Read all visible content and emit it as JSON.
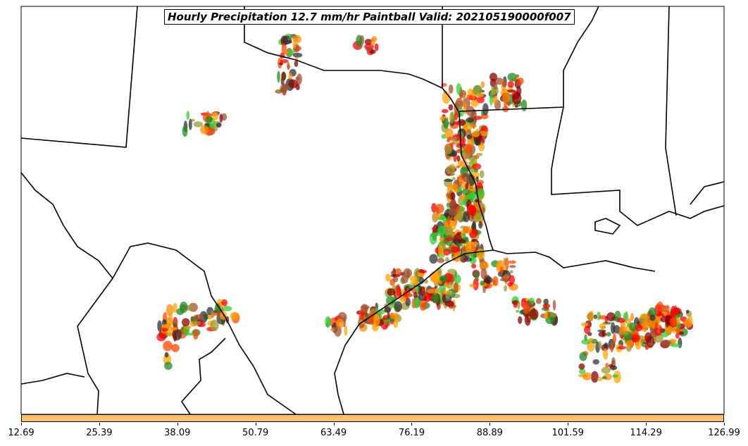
{
  "title": "Hourly Precipitation 12.7 mm/hr Paintball Valid: 202105190000f007",
  "colorbar": {
    "color": "#ffbf66",
    "ticks": [
      "12.69",
      "25.39",
      "38.09",
      "50.79",
      "63.49",
      "76.19",
      "88.89",
      "101.59",
      "114.29",
      "126.99"
    ]
  },
  "paintball_colors": [
    "#ff8c00",
    "#ffa500",
    "#ff4500",
    "#ff0000",
    "#8b0000",
    "#a0522d",
    "#228b22",
    "#32cd32",
    "#9a9a30",
    "#303030"
  ]
}
